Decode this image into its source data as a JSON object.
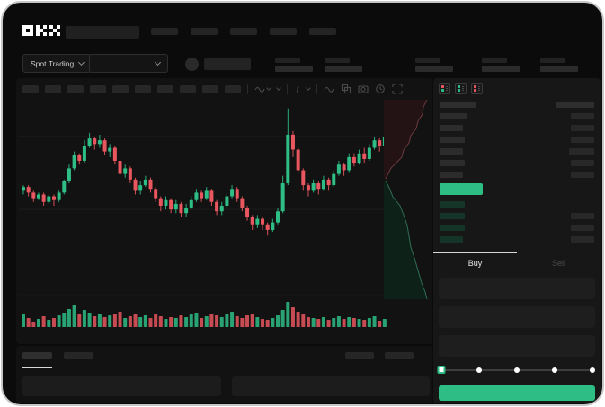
{
  "app": {
    "logo_icon": "okx-logo",
    "logo_text": "OKX"
  },
  "colors": {
    "up_green": "#2ebd85",
    "down_red": "#e8565f",
    "bid_row_green": "#143527",
    "background": "#0b0b0b",
    "panel": "#171717"
  },
  "header": {
    "nav_placeholder_count": 5
  },
  "subheader": {
    "market_type_selector": "Spot Trading",
    "stat_gaps": [
      0,
      13,
      59,
      32,
      23
    ]
  },
  "chart_toolbar": {
    "timeframe_placeholder_count": 10,
    "icons": [
      {
        "type": "divider"
      },
      {
        "name": "line-tool-icon",
        "type": "wave",
        "chevron": true
      },
      {
        "name": "chart-style-icon",
        "type": "chevron"
      },
      {
        "type": "divider"
      },
      {
        "name": "indicators-icon",
        "type": "fx",
        "chevron": true
      },
      {
        "type": "divider"
      },
      {
        "name": "overlay-icon",
        "type": "wave"
      },
      {
        "name": "compare-icon",
        "type": "compare"
      },
      {
        "name": "screenshot-icon",
        "type": "camera"
      },
      {
        "name": "timer-icon",
        "type": "timer"
      },
      {
        "name": "fullscreen-icon",
        "type": "expand"
      }
    ]
  },
  "orderbook": {
    "view_icons": [
      {
        "name": "orderbook-combined-view-icon",
        "top": "red",
        "bottom": "green"
      },
      {
        "name": "orderbook-bids-view-icon",
        "top": "green",
        "bottom": "green"
      },
      {
        "name": "orderbook-asks-view-icon",
        "top": "red",
        "bottom": "red"
      }
    ],
    "header": {
      "left_w": 40,
      "right_w": 42
    },
    "asks": [
      {
        "l": 30,
        "r": 26
      },
      {
        "l": 26,
        "r": 26
      },
      {
        "l": 28,
        "r": 26
      },
      {
        "l": 26,
        "r": 28
      },
      {
        "l": 28,
        "r": 26
      },
      {
        "l": 26,
        "r": 26
      }
    ],
    "last_price_highlighted": true,
    "bids": [
      {
        "l": 28,
        "r": 0
      },
      {
        "l": 28,
        "r": 26
      },
      {
        "l": 28,
        "r": 26
      },
      {
        "l": 26,
        "r": 26
      }
    ]
  },
  "trade_panel": {
    "tabs": [
      {
        "label": "Buy",
        "active": true
      },
      {
        "label": "Sell",
        "active": false
      }
    ],
    "input_count": 3,
    "slider_stops": 5
  },
  "bottom_tabs": {
    "left_count": 2,
    "right_count": 2,
    "row_count": 2
  },
  "chart_data": {
    "type": "candlestick",
    "title": "",
    "xlabel": "",
    "ylabel": "",
    "note": "no axis labels visible; prices normalized 0-100",
    "colors": {
      "up": "#2ebd85",
      "down": "#e8565f"
    },
    "gridlines_price": [
      75,
      36
    ],
    "candles": [
      [
        46,
        48,
        49,
        44
      ],
      [
        48,
        45,
        49,
        43
      ],
      [
        45,
        42,
        46,
        40
      ],
      [
        42,
        44,
        45,
        41
      ],
      [
        44,
        40,
        45,
        38
      ],
      [
        40,
        43,
        44,
        39
      ],
      [
        43,
        41,
        44,
        38
      ],
      [
        41,
        45,
        46,
        40
      ],
      [
        45,
        51,
        52,
        44
      ],
      [
        51,
        58,
        60,
        50
      ],
      [
        58,
        65,
        67,
        57
      ],
      [
        65,
        62,
        66,
        60
      ],
      [
        62,
        70,
        73,
        61
      ],
      [
        70,
        74,
        77,
        69
      ],
      [
        74,
        71,
        75,
        68
      ],
      [
        71,
        73,
        76,
        69
      ],
      [
        73,
        67,
        74,
        65
      ],
      [
        67,
        69,
        71,
        64
      ],
      [
        69,
        62,
        70,
        60
      ],
      [
        62,
        55,
        63,
        53
      ],
      [
        55,
        58,
        60,
        53
      ],
      [
        58,
        52,
        59,
        50
      ],
      [
        52,
        46,
        53,
        44
      ],
      [
        46,
        49,
        51,
        44
      ],
      [
        49,
        52,
        54,
        48
      ],
      [
        52,
        47,
        53,
        45
      ],
      [
        47,
        42,
        48,
        40
      ],
      [
        42,
        38,
        43,
        35
      ],
      [
        38,
        41,
        43,
        36
      ],
      [
        41,
        36,
        42,
        34
      ],
      [
        36,
        39,
        41,
        34
      ],
      [
        39,
        34,
        40,
        32
      ],
      [
        34,
        37,
        39,
        32
      ],
      [
        37,
        41,
        43,
        36
      ],
      [
        41,
        45,
        47,
        40
      ],
      [
        45,
        42,
        46,
        40
      ],
      [
        42,
        46,
        48,
        41
      ],
      [
        46,
        40,
        47,
        38
      ],
      [
        40,
        35,
        41,
        33
      ],
      [
        35,
        38,
        40,
        33
      ],
      [
        38,
        43,
        45,
        37
      ],
      [
        43,
        47,
        49,
        42
      ],
      [
        47,
        42,
        48,
        40
      ],
      [
        42,
        37,
        43,
        35
      ],
      [
        37,
        32,
        38,
        30
      ],
      [
        32,
        28,
        33,
        25
      ],
      [
        28,
        31,
        33,
        26
      ],
      [
        31,
        28,
        32,
        25
      ],
      [
        28,
        25,
        29,
        22
      ],
      [
        25,
        29,
        31,
        24
      ],
      [
        29,
        35,
        37,
        28
      ],
      [
        35,
        50,
        54,
        34
      ],
      [
        50,
        76,
        90,
        49
      ],
      [
        76,
        68,
        78,
        64
      ],
      [
        68,
        57,
        69,
        55
      ],
      [
        57,
        49,
        58,
        46
      ],
      [
        49,
        46,
        50,
        43
      ],
      [
        46,
        50,
        52,
        45
      ],
      [
        50,
        47,
        51,
        44
      ],
      [
        47,
        52,
        54,
        46
      ],
      [
        52,
        49,
        53,
        46
      ],
      [
        49,
        55,
        57,
        48
      ],
      [
        55,
        60,
        62,
        54
      ],
      [
        60,
        57,
        61,
        54
      ],
      [
        57,
        64,
        66,
        56
      ],
      [
        64,
        61,
        66,
        59
      ],
      [
        61,
        66,
        68,
        60
      ],
      [
        66,
        63,
        69,
        61
      ],
      [
        63,
        69,
        71,
        62
      ],
      [
        69,
        73,
        75,
        68
      ],
      [
        73,
        70,
        74,
        67
      ],
      [
        70,
        75,
        77,
        69
      ]
    ],
    "volumes": [
      14,
      10,
      6,
      9,
      12,
      8,
      10,
      13,
      16,
      20,
      24,
      14,
      19,
      16,
      12,
      14,
      11,
      13,
      15,
      17,
      10,
      12,
      14,
      11,
      13,
      10,
      15,
      12,
      9,
      11,
      10,
      13,
      11,
      14,
      16,
      10,
      12,
      15,
      13,
      11,
      14,
      17,
      12,
      10,
      13,
      15,
      11,
      9,
      8,
      10,
      13,
      19,
      28,
      22,
      17,
      14,
      11,
      10,
      9,
      11,
      8,
      10,
      12,
      9,
      11,
      10,
      9,
      8,
      10,
      12,
      7,
      9
    ],
    "depth": {
      "orientation": "vertical",
      "asks_line": [
        [
          48,
          0
        ],
        [
          44,
          8
        ],
        [
          43,
          16
        ],
        [
          38,
          24
        ],
        [
          36,
          32
        ],
        [
          30,
          40
        ],
        [
          28,
          48
        ],
        [
          22,
          56
        ],
        [
          20,
          64
        ],
        [
          8,
          76
        ],
        [
          4,
          84
        ],
        [
          2,
          88
        ]
      ],
      "bids_line": [
        [
          2,
          90
        ],
        [
          6,
          98
        ],
        [
          10,
          108
        ],
        [
          18,
          118
        ],
        [
          22,
          128
        ],
        [
          26,
          140
        ],
        [
          28,
          152
        ],
        [
          30,
          164
        ],
        [
          34,
          176
        ],
        [
          38,
          190
        ],
        [
          42,
          204
        ],
        [
          46,
          214
        ],
        [
          48,
          222
        ]
      ],
      "ask_fill": "#231315",
      "ask_stroke": "#6b3a3f",
      "bid_fill": "#0e2119",
      "bid_stroke": "#2f6e55"
    }
  }
}
